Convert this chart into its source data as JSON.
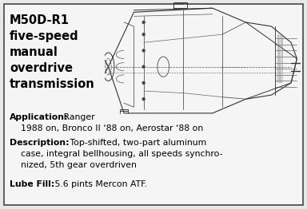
{
  "bg_color": "#e8e8e8",
  "box_color": "#f5f5f5",
  "box_edge_color": "#444444",
  "title_lines": [
    "M50D-R1",
    "five-speed",
    "manual",
    "overdrive",
    "transmission"
  ],
  "title_fontsize": 10.5,
  "app_label": "Application:",
  "app_text1": " Ranger",
  "app_text2": "1988 on, Bronco II ‘88 on, Aerostar ‘88 on",
  "desc_label": "Description:",
  "desc_text1": " Top-shifted, two-part aluminum",
  "desc_text2": "case, integral bellhousing, all speeds synchro-",
  "desc_text3": "nized, 5th gear overdriven",
  "lube_label": "Lube Fill:",
  "lube_text": " 5.6 pints Mercon ATF.",
  "label_fontsize": 7.8,
  "body_fontsize": 7.8,
  "figsize": [
    3.84,
    2.62
  ],
  "dpi": 100
}
